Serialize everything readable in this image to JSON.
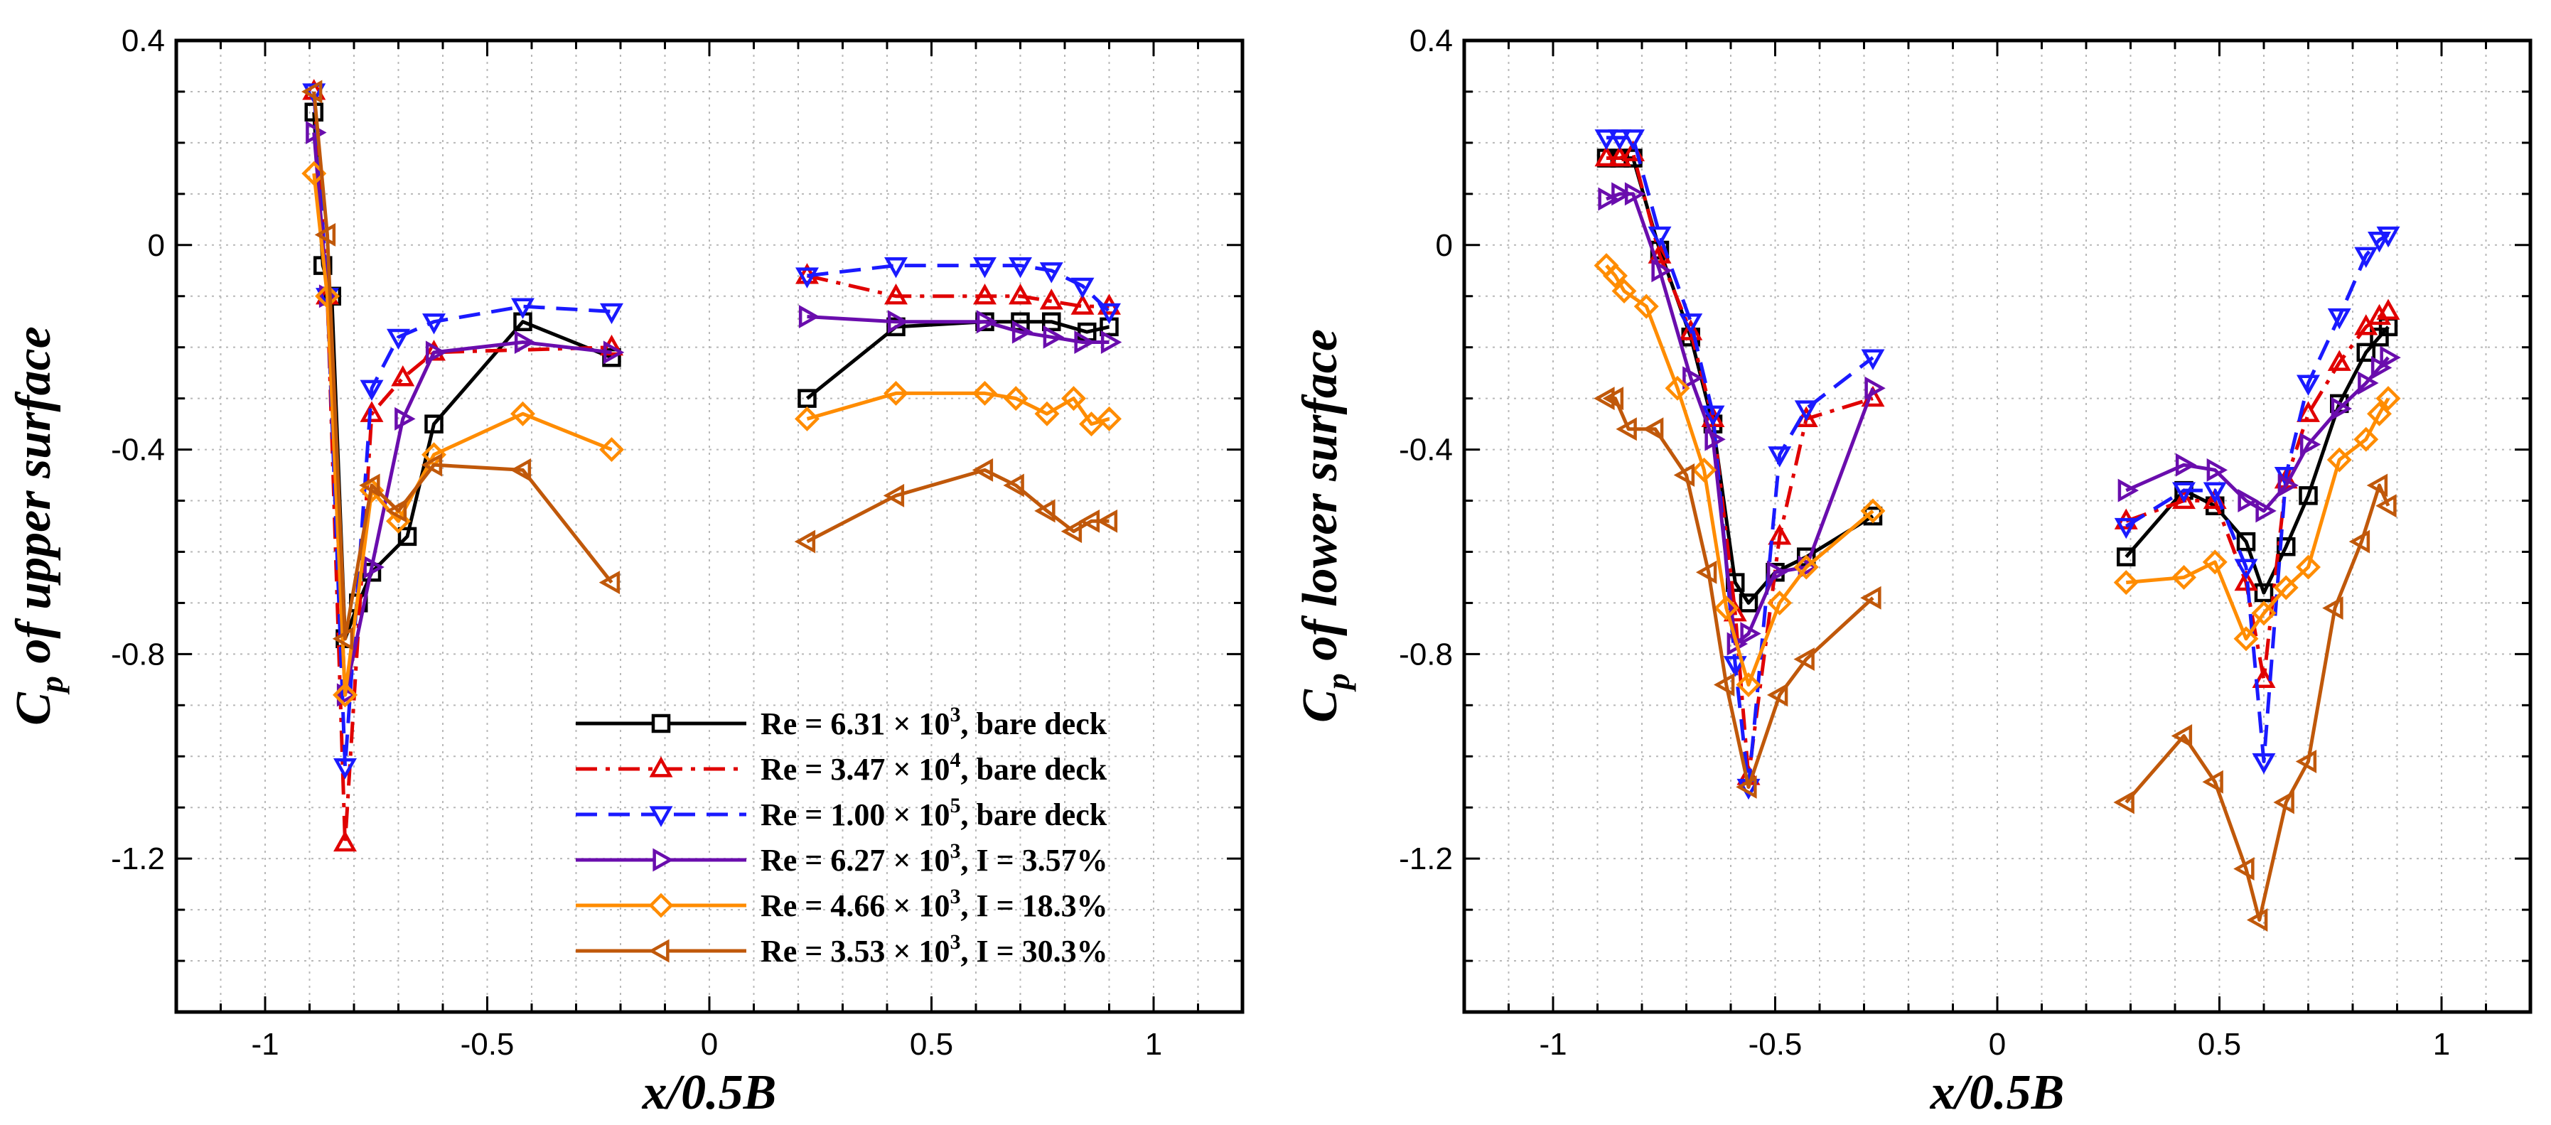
{
  "figure": {
    "panels": [
      "upper",
      "lower"
    ]
  },
  "chart_data": [
    {
      "id": "upper",
      "type": "line",
      "xlabel": "x/0.5B",
      "ylabel": "C_p of upper surface",
      "ylabel_main": "C",
      "ylabel_sub": "p",
      "ylabel_rest": " of upper surface",
      "xlim": [
        -1.2,
        1.2
      ],
      "ylim": [
        -1.5,
        0.4
      ],
      "xticks": [
        -1,
        -0.5,
        0,
        0.5,
        1
      ],
      "xtick_labels": [
        "-1",
        "-0.5",
        "0",
        "0.5",
        "1"
      ],
      "yticks": [
        0.4,
        0,
        -0.4,
        -0.8,
        -1.2
      ],
      "ytick_labels": [
        "0.4",
        "0",
        "-0.4",
        "-0.8",
        "-1.2"
      ],
      "grid": true,
      "legend_position": "bottom-right",
      "series": [
        {
          "name": "Re = 6.31 × 10^3, bare deck",
          "label_main": "Re = 6.31 × 10",
          "label_exp": "3",
          "label_tail": ", bare deck",
          "color": "#000000",
          "marker": "square",
          "dash": "solid",
          "segments": [
            {
              "x": [
                -0.89,
                -0.87,
                -0.85,
                -0.82,
                -0.79,
                -0.76,
                -0.68,
                -0.62,
                -0.42,
                -0.22
              ],
              "y": [
                0.26,
                -0.04,
                -0.1,
                -0.77,
                -0.7,
                -0.64,
                -0.57,
                -0.35,
                -0.15,
                -0.22
              ]
            },
            {
              "x": [
                0.22,
                0.42,
                0.62,
                0.7,
                0.77,
                0.85,
                0.9
              ],
              "y": [
                -0.3,
                -0.16,
                -0.15,
                -0.15,
                -0.15,
                -0.17,
                -0.16
              ]
            }
          ]
        },
        {
          "name": "Re = 3.47 × 10^4, bare deck",
          "label_main": "Re = 3.47 × 10",
          "label_exp": "4",
          "label_tail": ", bare deck",
          "color": "#e00000",
          "marker": "triangle-up",
          "dash": "dashdot",
          "segments": [
            {
              "x": [
                -0.89,
                -0.86,
                -0.82,
                -0.76,
                -0.69,
                -0.62,
                -0.22
              ],
              "y": [
                0.3,
                -0.1,
                -1.17,
                -0.33,
                -0.26,
                -0.21,
                -0.2
              ]
            },
            {
              "x": [
                0.22,
                0.42,
                0.62,
                0.7,
                0.77,
                0.84,
                0.9
              ],
              "y": [
                -0.06,
                -0.1,
                -0.1,
                -0.1,
                -0.11,
                -0.12,
                -0.12
              ]
            }
          ]
        },
        {
          "name": "Re = 1.00 × 10^5, bare deck",
          "label_main": "Re = 1.00 × 10",
          "label_exp": "5",
          "label_tail": ", bare deck",
          "color": "#1a1aff",
          "marker": "triangle-down",
          "dash": "dashed",
          "segments": [
            {
              "x": [
                -0.89,
                -0.86,
                -0.82,
                -0.76,
                -0.7,
                -0.62,
                -0.42,
                -0.22
              ],
              "y": [
                0.3,
                -0.1,
                -1.02,
                -0.28,
                -0.18,
                -0.15,
                -0.12,
                -0.13
              ]
            },
            {
              "x": [
                0.22,
                0.42,
                0.62,
                0.7,
                0.77,
                0.84,
                0.9
              ],
              "y": [
                -0.06,
                -0.04,
                -0.04,
                -0.04,
                -0.05,
                -0.08,
                -0.13
              ]
            }
          ]
        },
        {
          "name": "Re = 6.27 × 10^3, I = 3.57%",
          "label_main": "Re = 6.27 × 10",
          "label_exp": "3",
          "label_tail": ", I = 3.57%",
          "color": "#6a0dad",
          "marker": "triangle-right",
          "dash": "solid",
          "segments": [
            {
              "x": [
                -0.89,
                -0.86,
                -0.82,
                -0.76,
                -0.69,
                -0.62,
                -0.42,
                -0.22
              ],
              "y": [
                0.22,
                -0.1,
                -0.88,
                -0.63,
                -0.34,
                -0.21,
                -0.19,
                -0.21
              ]
            },
            {
              "x": [
                0.22,
                0.42,
                0.62,
                0.7,
                0.77,
                0.84,
                0.9
              ],
              "y": [
                -0.14,
                -0.15,
                -0.15,
                -0.17,
                -0.18,
                -0.19,
                -0.19
              ]
            }
          ]
        },
        {
          "name": "Re = 4.66 × 10^3, I = 18.3%",
          "label_main": "Re = 4.66 × 10",
          "label_exp": "3",
          "label_tail": ", I = 18.3%",
          "color": "#ff8c00",
          "marker": "diamond",
          "dash": "solid",
          "segments": [
            {
              "x": [
                -0.89,
                -0.86,
                -0.82,
                -0.76,
                -0.7,
                -0.62,
                -0.42,
                -0.22
              ],
              "y": [
                0.14,
                -0.1,
                -0.88,
                -0.48,
                -0.54,
                -0.41,
                -0.33,
                -0.4
              ]
            },
            {
              "x": [
                0.22,
                0.42,
                0.62,
                0.69,
                0.76,
                0.82,
                0.86,
                0.9
              ],
              "y": [
                -0.34,
                -0.29,
                -0.29,
                -0.3,
                -0.33,
                -0.3,
                -0.35,
                -0.34
              ]
            }
          ]
        },
        {
          "name": "Re = 3.53 × 10^3, I = 30.3%",
          "label_main": "Re = 3.53 × 10",
          "label_exp": "3",
          "label_tail": ", I = 30.3%",
          "color": "#c0580a",
          "marker": "triangle-left",
          "dash": "solid",
          "segments": [
            {
              "x": [
                -0.89,
                -0.86,
                -0.82,
                -0.76,
                -0.7,
                -0.62,
                -0.42,
                -0.22
              ],
              "y": [
                0.3,
                0.02,
                -0.77,
                -0.47,
                -0.52,
                -0.43,
                -0.44,
                -0.66
              ]
            },
            {
              "x": [
                0.22,
                0.42,
                0.62,
                0.69,
                0.76,
                0.82,
                0.86,
                0.9
              ],
              "y": [
                -0.58,
                -0.49,
                -0.44,
                -0.47,
                -0.52,
                -0.56,
                -0.54,
                -0.54
              ]
            }
          ]
        }
      ]
    },
    {
      "id": "lower",
      "type": "line",
      "xlabel": "x/0.5B",
      "ylabel": "C_p of lower surface",
      "ylabel_main": "C",
      "ylabel_sub": "p",
      "ylabel_rest": " of lower surface",
      "xlim": [
        -1.2,
        1.2
      ],
      "ylim": [
        -1.5,
        0.4
      ],
      "xticks": [
        -1,
        -0.5,
        0,
        0.5,
        1
      ],
      "xtick_labels": [
        "-1",
        "-0.5",
        "0",
        "0.5",
        "1"
      ],
      "yticks": [
        0.4,
        0,
        -0.4,
        -0.8,
        -1.2
      ],
      "ytick_labels": [
        "0.4",
        "0",
        "-0.4",
        "-0.8",
        "-1.2"
      ],
      "grid": true,
      "series": [
        {
          "name": "Re = 6.31 × 10^3, bare deck",
          "color": "#000000",
          "marker": "square",
          "dash": "solid",
          "segments": [
            {
              "x": [
                -0.88,
                -0.85,
                -0.82,
                -0.76,
                -0.69,
                -0.64,
                -0.59,
                -0.56,
                -0.5,
                -0.43,
                -0.28
              ],
              "y": [
                0.17,
                0.17,
                0.17,
                -0.01,
                -0.18,
                -0.35,
                -0.66,
                -0.7,
                -0.64,
                -0.61,
                -0.53
              ]
            },
            {
              "x": [
                0.29,
                0.42,
                0.49,
                0.56,
                0.6,
                0.65,
                0.7,
                0.77,
                0.83,
                0.86,
                0.88
              ],
              "y": [
                -0.61,
                -0.48,
                -0.51,
                -0.58,
                -0.68,
                -0.59,
                -0.49,
                -0.31,
                -0.21,
                -0.18,
                -0.16
              ]
            }
          ]
        },
        {
          "name": "Re = 3.47 × 10^4, bare deck",
          "color": "#e00000",
          "marker": "triangle-up",
          "dash": "dashdot",
          "segments": [
            {
              "x": [
                -0.88,
                -0.85,
                -0.82,
                -0.76,
                -0.69,
                -0.64,
                -0.59,
                -0.56,
                -0.49,
                -0.43,
                -0.28
              ],
              "y": [
                0.17,
                0.17,
                0.18,
                -0.02,
                -0.17,
                -0.34,
                -0.72,
                -1.04,
                -0.57,
                -0.34,
                -0.3
              ]
            },
            {
              "x": [
                0.29,
                0.42,
                0.49,
                0.56,
                0.6,
                0.65,
                0.7,
                0.77,
                0.83,
                0.86,
                0.88
              ],
              "y": [
                -0.54,
                -0.5,
                -0.5,
                -0.66,
                -0.85,
                -0.46,
                -0.33,
                -0.23,
                -0.16,
                -0.14,
                -0.13
              ]
            }
          ]
        },
        {
          "name": "Re = 1.00 × 10^5, bare deck",
          "color": "#1a1aff",
          "marker": "triangle-down",
          "dash": "dashed",
          "segments": [
            {
              "x": [
                -0.88,
                -0.85,
                -0.82,
                -0.76,
                -0.69,
                -0.64,
                -0.59,
                -0.56,
                -0.49,
                -0.43,
                -0.28
              ],
              "y": [
                0.21,
                0.21,
                0.21,
                0.02,
                -0.15,
                -0.33,
                -0.82,
                -1.06,
                -0.41,
                -0.32,
                -0.22
              ]
            },
            {
              "x": [
                0.29,
                0.42,
                0.49,
                0.56,
                0.6,
                0.65,
                0.7,
                0.77,
                0.83,
                0.86,
                0.88
              ],
              "y": [
                -0.55,
                -0.48,
                -0.48,
                -0.63,
                -1.01,
                -0.45,
                -0.27,
                -0.14,
                -0.02,
                0.01,
                0.02
              ]
            }
          ]
        },
        {
          "name": "Re = 6.27 × 10^3, I = 3.57%",
          "color": "#6a0dad",
          "marker": "triangle-right",
          "dash": "solid",
          "segments": [
            {
              "x": [
                -0.88,
                -0.85,
                -0.82,
                -0.76,
                -0.69,
                -0.64,
                -0.59,
                -0.56,
                -0.5,
                -0.43,
                -0.28
              ],
              "y": [
                0.09,
                0.1,
                0.1,
                -0.05,
                -0.26,
                -0.38,
                -0.78,
                -0.76,
                -0.64,
                -0.63,
                -0.28
              ]
            },
            {
              "x": [
                0.29,
                0.42,
                0.49,
                0.56,
                0.6,
                0.65,
                0.7,
                0.77,
                0.83,
                0.86,
                0.88
              ],
              "y": [
                -0.48,
                -0.43,
                -0.44,
                -0.5,
                -0.52,
                -0.47,
                -0.39,
                -0.32,
                -0.27,
                -0.24,
                -0.22
              ]
            }
          ]
        },
        {
          "name": "Re = 4.66 × 10^3, I = 18.3%",
          "color": "#ff8c00",
          "marker": "diamond",
          "dash": "solid",
          "segments": [
            {
              "x": [
                -0.88,
                -0.86,
                -0.84,
                -0.79,
                -0.72,
                -0.66,
                -0.61,
                -0.56,
                -0.49,
                -0.43,
                -0.28
              ],
              "y": [
                -0.04,
                -0.06,
                -0.09,
                -0.12,
                -0.28,
                -0.44,
                -0.71,
                -0.86,
                -0.7,
                -0.63,
                -0.52
              ]
            },
            {
              "x": [
                0.29,
                0.42,
                0.49,
                0.56,
                0.6,
                0.65,
                0.7,
                0.77,
                0.83,
                0.86,
                0.88
              ],
              "y": [
                -0.66,
                -0.65,
                -0.62,
                -0.77,
                -0.72,
                -0.67,
                -0.63,
                -0.42,
                -0.38,
                -0.33,
                -0.3
              ]
            }
          ]
        },
        {
          "name": "Re = 3.53 × 10^3, I = 30.3%",
          "color": "#c0580a",
          "marker": "triangle-left",
          "dash": "solid",
          "segments": [
            {
              "x": [
                -0.88,
                -0.86,
                -0.83,
                -0.77,
                -0.7,
                -0.65,
                -0.61,
                -0.56,
                -0.49,
                -0.43,
                -0.28
              ],
              "y": [
                -0.3,
                -0.3,
                -0.36,
                -0.36,
                -0.45,
                -0.64,
                -0.86,
                -1.06,
                -0.88,
                -0.81,
                -0.69
              ]
            },
            {
              "x": [
                0.29,
                0.42,
                0.49,
                0.56,
                0.59,
                0.65,
                0.7,
                0.76,
                0.82,
                0.86,
                0.88
              ],
              "y": [
                -1.09,
                -0.96,
                -1.05,
                -1.22,
                -1.32,
                -1.09,
                -1.01,
                -0.71,
                -0.58,
                -0.47,
                -0.51
              ]
            }
          ]
        }
      ]
    }
  ]
}
